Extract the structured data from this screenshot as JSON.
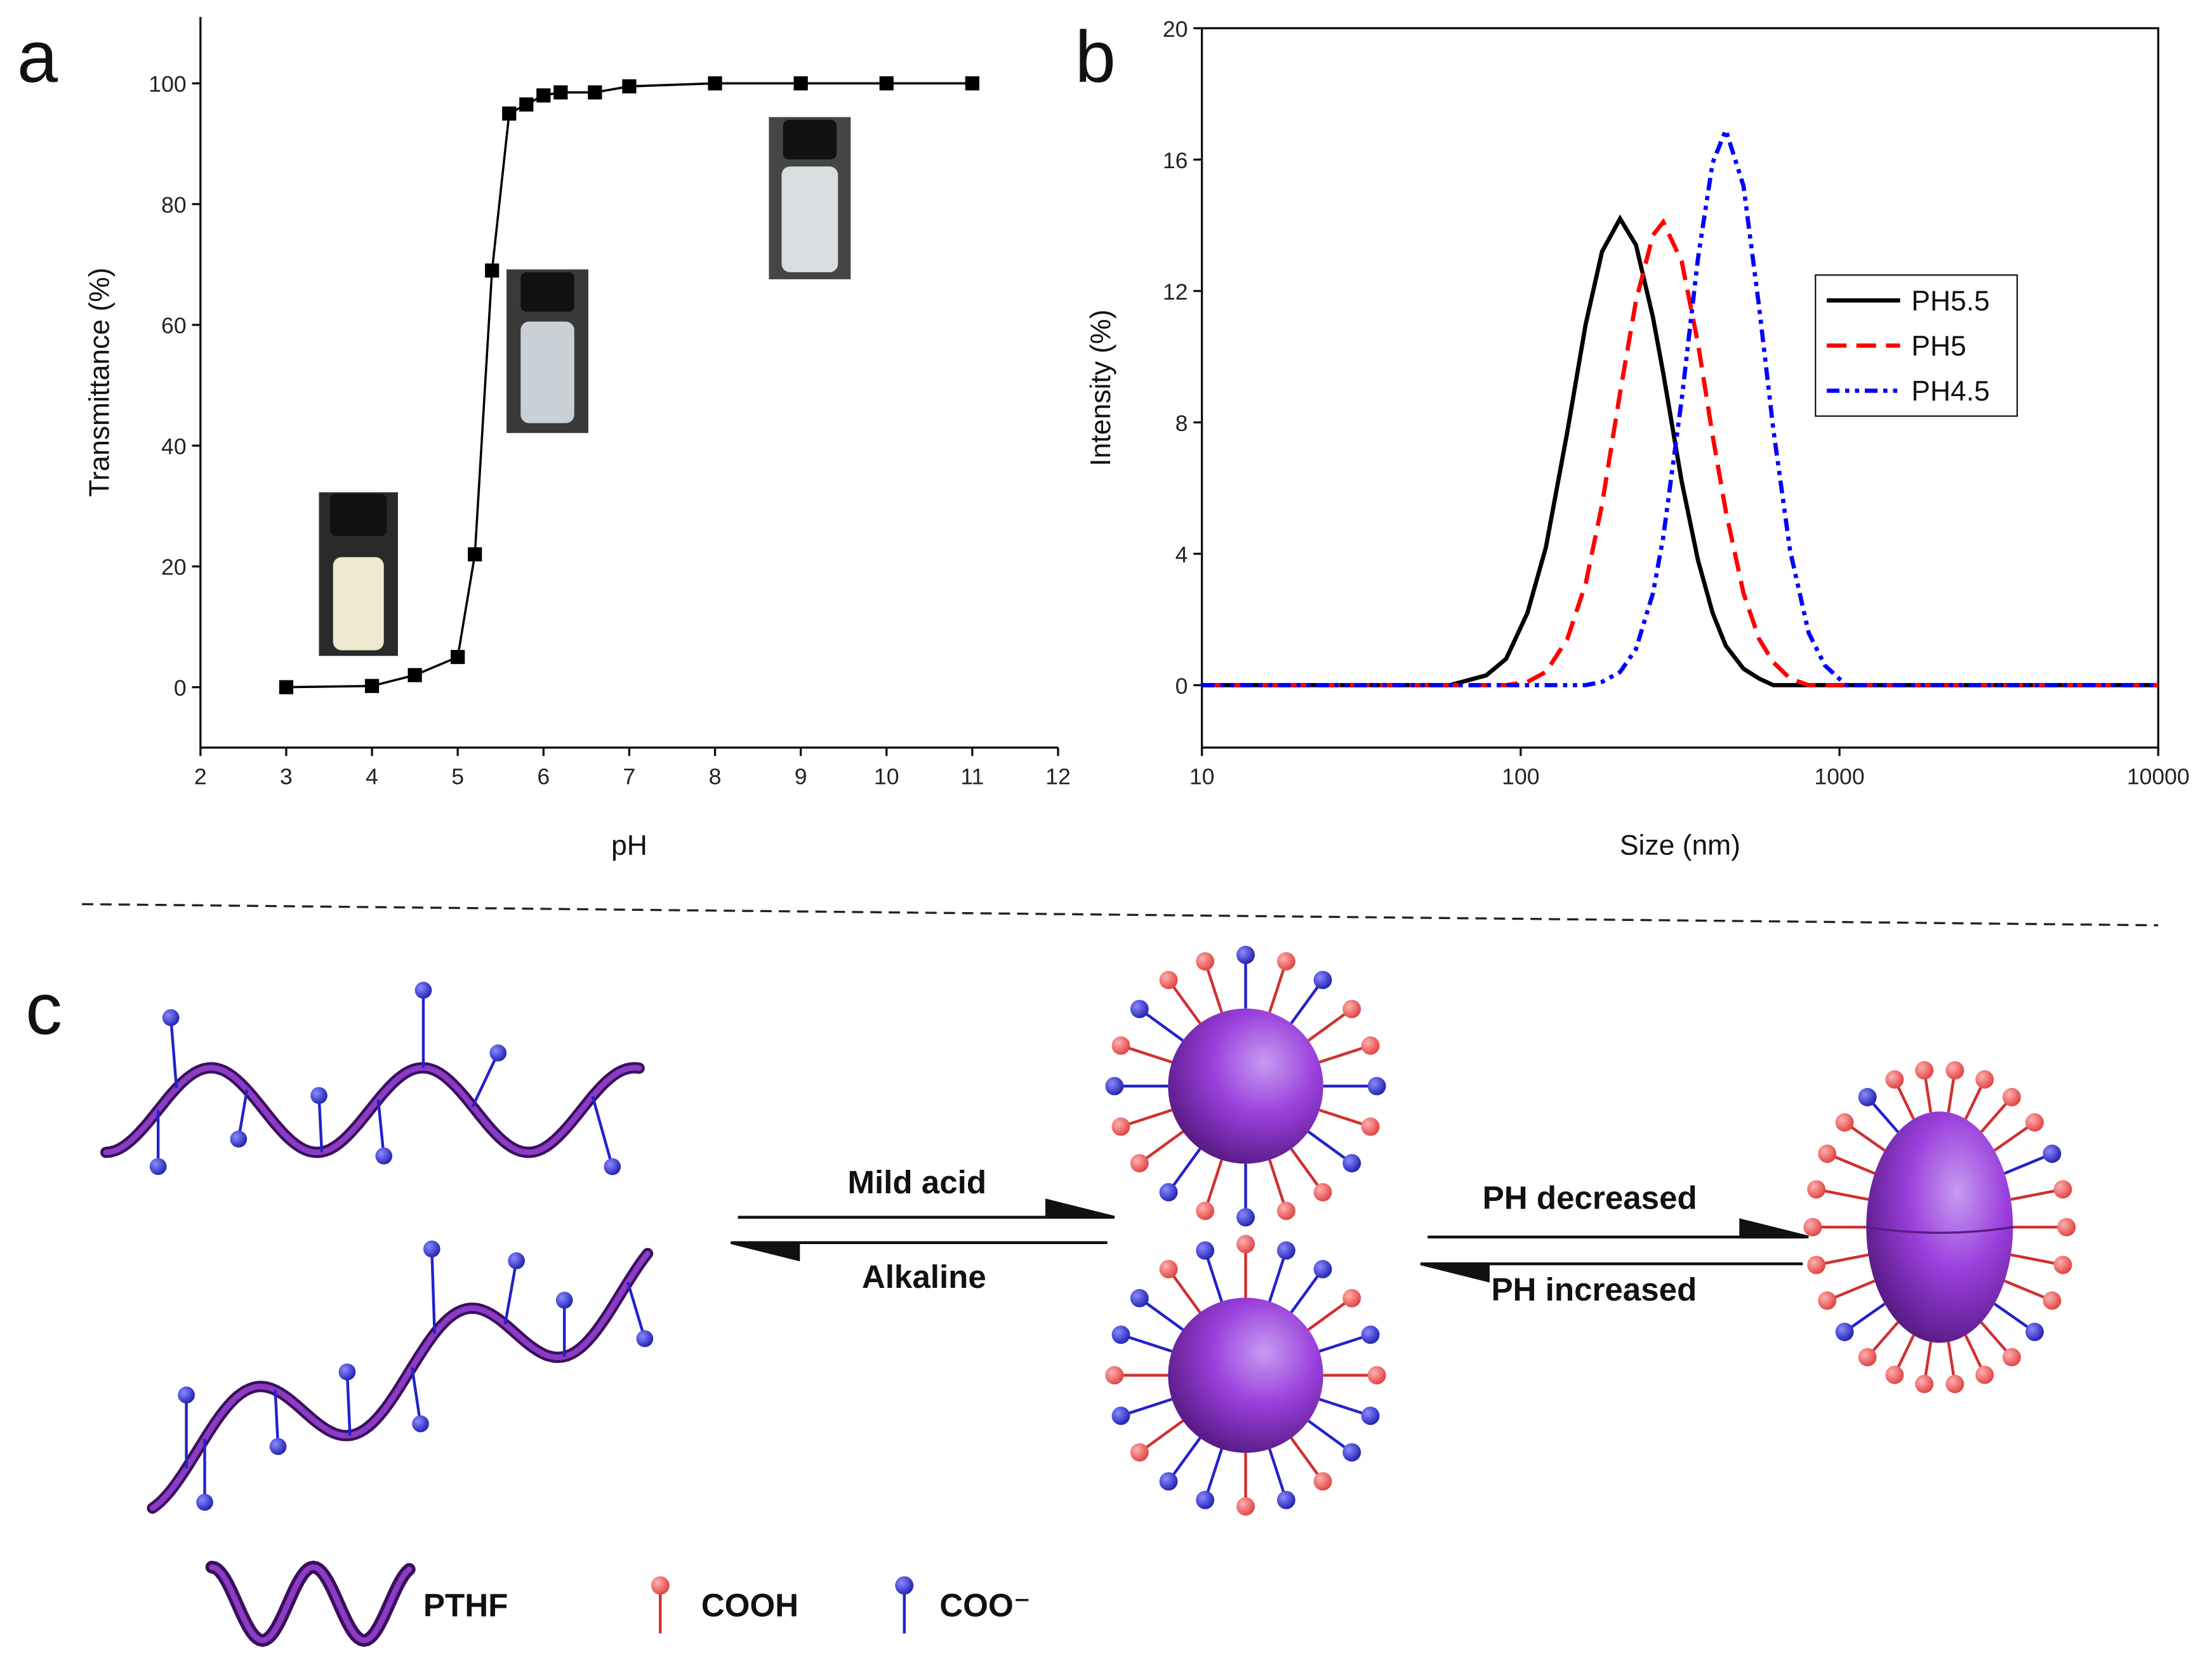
{
  "chart_data": [
    {
      "type": "line",
      "panel_label": "a",
      "x_label": "pH",
      "y_label": "Transmittance (%)",
      "x": [
        3,
        4,
        4.5,
        5,
        5.2,
        5.4,
        5.6,
        5.8,
        6,
        6.2,
        6.6,
        7,
        8,
        9,
        10,
        11
      ],
      "values": [
        0,
        0.2,
        2,
        5,
        22,
        69,
        95,
        96.5,
        98,
        98.5,
        98.5,
        99.5,
        100,
        100,
        100,
        100
      ],
      "color": "#000000",
      "markers": true,
      "box": false,
      "xlim": [
        2,
        12
      ],
      "xticks": [
        2,
        3,
        4,
        5,
        6,
        7,
        8,
        9,
        10,
        11,
        12
      ],
      "ylim": [
        -10,
        111
      ],
      "yticks": [
        0,
        20,
        40,
        60,
        80,
        100
      ]
    },
    {
      "type": "line",
      "panel_label": "b",
      "x_label": "Size (nm)",
      "y_label": "Intensity (%)",
      "xscale": "log",
      "box": true,
      "legend": "right",
      "x": [
        10,
        60,
        78,
        90,
        105,
        120,
        140,
        160,
        180,
        205,
        230,
        260,
        280,
        320,
        360,
        400,
        440,
        500,
        560,
        620,
        700,
        800,
        900,
        1050,
        2000,
        10000
      ],
      "series": [
        {
          "name": "PH5.5",
          "color": "#000000",
          "line_style": "solid",
          "values": [
            0,
            0,
            0.3,
            0.8,
            2.2,
            4.2,
            7.7,
            11.0,
            13.2,
            14.2,
            13.4,
            11.2,
            9.5,
            6.2,
            3.8,
            2.2,
            1.2,
            0.5,
            0.2,
            0,
            0,
            0,
            0,
            0,
            0,
            0
          ]
        },
        {
          "name": "PH5",
          "color": "#ff0000",
          "line_style": "dashed",
          "values": [
            0,
            0,
            0,
            0,
            0.1,
            0.4,
            1.4,
            3.1,
            5.5,
            8.9,
            11.7,
            13.7,
            14.1,
            12.9,
            10.4,
            7.6,
            5.3,
            2.8,
            1.4,
            0.7,
            0.2,
            0,
            0,
            0,
            0,
            0
          ]
        },
        {
          "name": "PH4.5",
          "color": "#0000ff",
          "line_style": "dash-dot-dot",
          "values": [
            0,
            0,
            0,
            0,
            0,
            0,
            0,
            0,
            0.1,
            0.4,
            1.1,
            2.8,
            4.5,
            8.7,
            13.0,
            15.9,
            16.9,
            15.2,
            11.5,
            7.8,
            4.1,
            1.6,
            0.6,
            0,
            0,
            0
          ]
        }
      ],
      "xlim": [
        10,
        10000
      ],
      "xticks": [
        10,
        100,
        1000,
        10000
      ],
      "ylim": [
        -1.9,
        20
      ],
      "yticks": [
        0,
        4,
        8,
        12,
        16,
        20
      ]
    }
  ],
  "diagram": {
    "panel_label": "c",
    "arrow_1": {
      "top": "Mild acid",
      "bottom": "Alkaline"
    },
    "arrow_2": {
      "top": "PH decreased",
      "bottom": "PH increased"
    },
    "legend": [
      "PTHF",
      "COOH",
      "COO⁻"
    ]
  }
}
